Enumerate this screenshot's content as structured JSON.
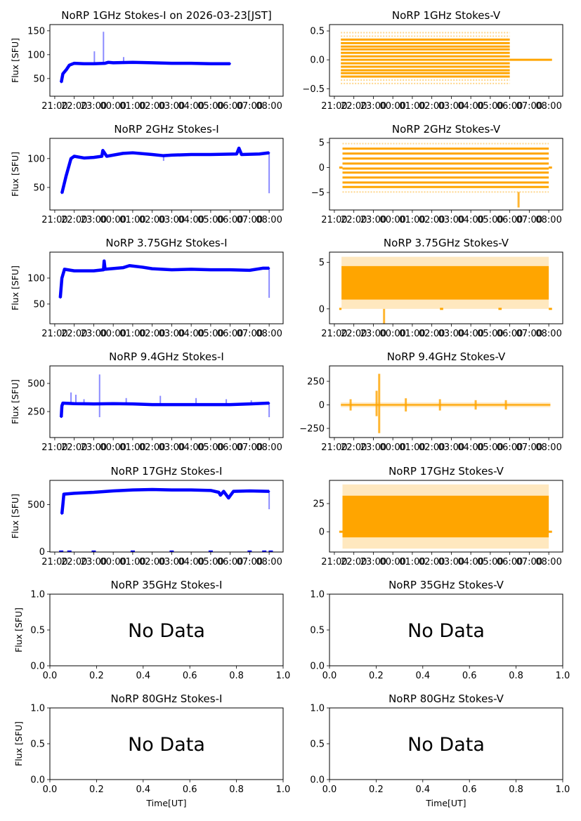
{
  "figure": {
    "background": "#ffffff",
    "colors": {
      "stokes_i": "#0000ff",
      "stokes_v": "#ffa500"
    }
  },
  "chart_data": [
    {
      "id": "i1",
      "type": "scatter",
      "title": "NoRP 1GHz Stokes-I on 2026-03-23[JST]",
      "ylabel": "Flux [SFU]",
      "xlabel": "",
      "col": 0,
      "row": 0,
      "xlim": [
        "20:45",
        "08:43"
      ],
      "ylim": [
        13,
        163
      ],
      "yticks": [
        50,
        100,
        150
      ],
      "xticks": [
        "21:00",
        "22:00",
        "23:00",
        "00:00",
        "01:00",
        "02:00",
        "03:00",
        "04:00",
        "05:00",
        "06:00",
        "07:00",
        "08:00"
      ],
      "points": [
        [
          "21:20",
          42
        ],
        [
          "21:25",
          60
        ],
        [
          "21:35",
          68
        ],
        [
          "21:45",
          78
        ],
        [
          "22:00",
          82
        ],
        [
          "22:30",
          81
        ],
        [
          "23:00",
          81
        ],
        [
          "23:35",
          82
        ],
        [
          "23:45",
          84
        ],
        [
          "00:00",
          83
        ],
        [
          "01:00",
          84
        ],
        [
          "02:00",
          83
        ],
        [
          "03:00",
          82
        ],
        [
          "04:00",
          82
        ],
        [
          "05:00",
          81
        ],
        [
          "06:00",
          81
        ]
      ],
      "spikes": [
        [
          "23:02",
          107
        ],
        [
          "23:30",
          148
        ],
        [
          "00:32",
          95
        ]
      ]
    },
    {
      "id": "v1",
      "type": "scatter",
      "title": "NoRP 1GHz Stokes-V",
      "ylabel": "",
      "xlabel": "",
      "col": 1,
      "row": 0,
      "xlim": [
        "20:45",
        "08:43"
      ],
      "ylim": [
        -0.63,
        0.61
      ],
      "yticks": [
        -0.5,
        0.0,
        0.5
      ],
      "ytick_labels": [
        "−0.5",
        "0.0",
        "0.5"
      ],
      "xticks": [
        "21:00",
        "22:00",
        "23:00",
        "00:00",
        "01:00",
        "02:00",
        "03:00",
        "04:00",
        "05:00",
        "06:00",
        "07:00",
        "08:00"
      ],
      "t_start": "21:20",
      "t_end": "06:00",
      "levels": [
        -0.29,
        -0.23,
        -0.18,
        -0.12,
        -0.06,
        0,
        0.06,
        0.12,
        0.18,
        0.23,
        0.29,
        0.35
      ],
      "sparse_levels": [
        -0.41,
        -0.35,
        0.41,
        0.47
      ],
      "zero_line": [
        [
          "06:00",
          "08:10"
        ]
      ]
    },
    {
      "id": "i2",
      "type": "scatter",
      "title": "NoRP 2GHz Stokes-I",
      "ylabel": "Flux [SFU]",
      "xlabel": "",
      "col": 0,
      "row": 1,
      "xlim": [
        "20:45",
        "08:43"
      ],
      "ylim": [
        11,
        135
      ],
      "yticks": [
        50,
        100
      ],
      "xticks": [
        "21:00",
        "22:00",
        "23:00",
        "00:00",
        "01:00",
        "02:00",
        "03:00",
        "04:00",
        "05:00",
        "06:00",
        "07:00",
        "08:00"
      ],
      "points": [
        [
          "21:22",
          40
        ],
        [
          "21:35",
          70
        ],
        [
          "21:50",
          100
        ],
        [
          "22:00",
          104
        ],
        [
          "22:30",
          101
        ],
        [
          "23:00",
          102
        ],
        [
          "23:25",
          104
        ],
        [
          "23:28",
          114
        ],
        [
          "23:40",
          104
        ],
        [
          "00:30",
          109
        ],
        [
          "01:00",
          110
        ],
        [
          "02:00",
          107
        ],
        [
          "02:35",
          105
        ],
        [
          "03:00",
          106
        ],
        [
          "04:00",
          107
        ],
        [
          "05:00",
          107
        ],
        [
          "06:20",
          108
        ],
        [
          "06:27",
          118
        ],
        [
          "06:35",
          107
        ],
        [
          "07:30",
          108
        ],
        [
          "08:00",
          110
        ]
      ],
      "spikes": [
        [
          "02:35",
          96
        ],
        [
          "08:00",
          40
        ]
      ]
    },
    {
      "id": "v2",
      "type": "scatter",
      "title": "NoRP 2GHz Stokes-V",
      "ylabel": "",
      "xlabel": "",
      "col": 1,
      "row": 1,
      "xlim": [
        "20:45",
        "08:43"
      ],
      "ylim": [
        -8.5,
        5.85
      ],
      "yticks": [
        -5,
        0,
        5
      ],
      "ytick_labels": [
        "−5",
        "0",
        "5"
      ],
      "xticks": [
        "21:00",
        "22:00",
        "23:00",
        "00:00",
        "01:00",
        "02:00",
        "03:00",
        "04:00",
        "05:00",
        "06:00",
        "07:00",
        "08:00"
      ],
      "t_start": "21:25",
      "t_end": "08:00",
      "levels": [
        -3.9,
        -3.0,
        -2.0,
        -1.0,
        -0.2,
        0.8,
        1.8,
        2.8,
        3.8
      ],
      "sparse_levels": [
        -4.9,
        4.8
      ],
      "zero_line": [
        [
          "21:15",
          "21:25"
        ],
        [
          "08:00",
          "08:10"
        ]
      ],
      "spikes": [
        [
          "06:27",
          -8,
          -4.9
        ]
      ]
    },
    {
      "id": "i3",
      "type": "scatter",
      "title": "NoRP 3.75GHz Stokes-I",
      "ylabel": "Flux [SFU]",
      "xlabel": "",
      "col": 0,
      "row": 2,
      "xlim": [
        "20:45",
        "08:43"
      ],
      "ylim": [
        12,
        150
      ],
      "yticks": [
        50,
        100
      ],
      "xticks": [
        "21:00",
        "22:00",
        "23:00",
        "00:00",
        "01:00",
        "02:00",
        "03:00",
        "04:00",
        "05:00",
        "06:00",
        "07:00",
        "08:00"
      ],
      "points": [
        [
          "21:17",
          62
        ],
        [
          "21:22",
          100
        ],
        [
          "21:30",
          117
        ],
        [
          "22:00",
          114
        ],
        [
          "23:00",
          114
        ],
        [
          "23:30",
          116
        ],
        [
          "23:32",
          133
        ],
        [
          "23:35",
          117
        ],
        [
          "00:30",
          120
        ],
        [
          "00:50",
          124
        ],
        [
          "01:30",
          121
        ],
        [
          "02:00",
          118
        ],
        [
          "03:00",
          116
        ],
        [
          "04:00",
          117
        ],
        [
          "05:00",
          116
        ],
        [
          "06:00",
          116
        ],
        [
          "07:00",
          115
        ],
        [
          "07:40",
          119
        ],
        [
          "08:00",
          119
        ]
      ],
      "spikes": [
        [
          "08:00",
          62
        ]
      ]
    },
    {
      "id": "v3",
      "type": "scatter",
      "title": "NoRP 3.75GHz Stokes-V",
      "ylabel": "",
      "xlabel": "",
      "col": 1,
      "row": 2,
      "xlim": [
        "20:45",
        "08:43"
      ],
      "ylim": [
        -1.6,
        6.1
      ],
      "yticks": [
        0,
        5
      ],
      "ytick_labels": [
        "0",
        "5"
      ],
      "xticks": [
        "21:00",
        "22:00",
        "23:00",
        "00:00",
        "01:00",
        "02:00",
        "03:00",
        "04:00",
        "05:00",
        "06:00",
        "07:00",
        "08:00"
      ],
      "t_start": "21:22",
      "t_end": "08:00",
      "dense": [
        1.0,
        4.6
      ],
      "sparse": [
        0.0,
        5.6
      ],
      "zero_line": [
        [
          "21:15",
          "21:22"
        ],
        [
          "02:25",
          "02:35"
        ],
        [
          "05:25",
          "05:35"
        ],
        [
          "08:00",
          "08:10"
        ]
      ],
      "spikes": [
        [
          "23:33",
          -1.6,
          0
        ]
      ]
    },
    {
      "id": "i4",
      "type": "scatter",
      "title": "NoRP 9.4GHz Stokes-I",
      "ylabel": "Flux [SFU]",
      "xlabel": "",
      "col": 0,
      "row": 3,
      "xlim": [
        "20:45",
        "08:43"
      ],
      "ylim": [
        19,
        656
      ],
      "yticks": [
        250,
        500
      ],
      "xticks": [
        "21:00",
        "22:00",
        "23:00",
        "00:00",
        "01:00",
        "02:00",
        "03:00",
        "04:00",
        "05:00",
        "06:00",
        "07:00",
        "08:00"
      ],
      "points": [
        [
          "21:20",
          200
        ],
        [
          "21:22",
          300
        ],
        [
          "21:25",
          325
        ],
        [
          "22:00",
          320
        ],
        [
          "23:00",
          318
        ],
        [
          "00:00",
          320
        ],
        [
          "01:00",
          318
        ],
        [
          "02:00",
          312
        ],
        [
          "03:00",
          312
        ],
        [
          "04:00",
          312
        ],
        [
          "05:00",
          312
        ],
        [
          "06:00",
          312
        ],
        [
          "07:00",
          318
        ],
        [
          "08:00",
          325
        ]
      ],
      "spikes": [
        [
          "23:18",
          580
        ],
        [
          "23:18",
          200
        ],
        [
          "21:50",
          420
        ],
        [
          "22:05",
          400
        ],
        [
          "22:30",
          360
        ],
        [
          "00:40",
          370
        ],
        [
          "02:25",
          390
        ],
        [
          "04:15",
          370
        ],
        [
          "05:48",
          360
        ],
        [
          "07:05",
          350
        ],
        [
          "08:00",
          200
        ]
      ]
    },
    {
      "id": "v4",
      "type": "scatter",
      "title": "NoRP 9.4GHz Stokes-V",
      "ylabel": "",
      "xlabel": "",
      "col": 1,
      "row": 3,
      "xlim": [
        "20:45",
        "08:43"
      ],
      "ylim": [
        -347,
        414
      ],
      "yticks": [
        -250,
        0,
        250
      ],
      "ytick_labels": [
        "−250",
        "0",
        "250"
      ],
      "xticks": [
        "21:00",
        "22:00",
        "23:00",
        "00:00",
        "01:00",
        "02:00",
        "03:00",
        "04:00",
        "05:00",
        "06:00",
        "07:00",
        "08:00"
      ],
      "t_start": "21:20",
      "t_end": "08:05",
      "dense": [
        -8,
        8
      ],
      "sparse": [
        -25,
        25
      ],
      "spikes": [
        [
          "23:18",
          -300,
          330
        ],
        [
          "23:10",
          -120,
          150
        ],
        [
          "21:50",
          -60,
          60
        ],
        [
          "00:40",
          -70,
          70
        ],
        [
          "02:25",
          -60,
          60
        ],
        [
          "04:15",
          -50,
          50
        ],
        [
          "05:48",
          -50,
          50
        ]
      ]
    },
    {
      "id": "i5",
      "type": "scatter",
      "title": "NoRP 17GHz Stokes-I",
      "ylabel": "Flux [SFU]",
      "xlabel": "",
      "col": 0,
      "row": 4,
      "xlim": [
        "20:45",
        "08:43"
      ],
      "ylim": [
        -5,
        757
      ],
      "yticks": [
        0,
        500
      ],
      "xticks": [
        "21:00",
        "22:00",
        "23:00",
        "00:00",
        "01:00",
        "02:00",
        "03:00",
        "04:00",
        "05:00",
        "06:00",
        "07:00",
        "08:00"
      ],
      "points": [
        [
          "21:22",
          400
        ],
        [
          "21:25",
          500
        ],
        [
          "21:28",
          610
        ],
        [
          "22:00",
          620
        ],
        [
          "23:00",
          630
        ],
        [
          "00:00",
          645
        ],
        [
          "01:00",
          655
        ],
        [
          "02:00",
          660
        ],
        [
          "03:00",
          655
        ],
        [
          "04:00",
          655
        ],
        [
          "05:00",
          650
        ],
        [
          "05:25",
          630
        ],
        [
          "05:30",
          600
        ],
        [
          "05:40",
          640
        ],
        [
          "05:55",
          570
        ],
        [
          "06:10",
          640
        ],
        [
          "07:00",
          645
        ],
        [
          "08:00",
          640
        ]
      ],
      "spikes": [
        [
          "08:00",
          450
        ]
      ],
      "zero_markers": [
        "21:20",
        "21:45",
        "23:00",
        "01:00",
        "03:00",
        "05:00",
        "07:00",
        "07:45",
        "08:05"
      ]
    },
    {
      "id": "v5",
      "type": "scatter",
      "title": "NoRP 17GHz Stokes-V",
      "ylabel": "",
      "xlabel": "",
      "col": 1,
      "row": 4,
      "xlim": [
        "20:45",
        "08:43"
      ],
      "ylim": [
        -18,
        45.6
      ],
      "yticks": [
        0,
        25
      ],
      "ytick_labels": [
        "0",
        "25"
      ],
      "xticks": [
        "21:00",
        "22:00",
        "23:00",
        "00:00",
        "01:00",
        "02:00",
        "03:00",
        "04:00",
        "05:00",
        "06:00",
        "07:00",
        "08:00"
      ],
      "t_start": "21:25",
      "t_end": "08:00",
      "dense": [
        -5,
        32
      ],
      "sparse": [
        -15,
        42
      ],
      "zero_line": [
        [
          "21:15",
          "08:10"
        ]
      ]
    },
    {
      "id": "i6",
      "type": "scatter",
      "title": "NoRP 35GHz Stokes-I",
      "ylabel": "Flux [SFU]",
      "xlabel": "",
      "col": 0,
      "row": 5,
      "no_data": "No Data",
      "xlim": [
        0,
        1
      ],
      "ylim": [
        0,
        1
      ],
      "xticks": [
        "0.0",
        "0.2",
        "0.4",
        "0.6",
        "0.8",
        "1.0"
      ],
      "yticks": [
        0,
        0.5,
        1
      ],
      "ytick_labels": [
        "0.0",
        "0.5",
        "1.0"
      ]
    },
    {
      "id": "v6",
      "type": "scatter",
      "title": "NoRP 35GHz Stokes-V",
      "ylabel": "",
      "xlabel": "",
      "col": 1,
      "row": 5,
      "no_data": "No Data",
      "xlim": [
        0,
        1
      ],
      "ylim": [
        0,
        1
      ],
      "xticks": [
        "0.0",
        "0.2",
        "0.4",
        "0.6",
        "0.8",
        "1.0"
      ],
      "yticks": [
        0,
        0.5,
        1
      ],
      "ytick_labels": [
        "0.0",
        "0.5",
        "1.0"
      ]
    },
    {
      "id": "i7",
      "type": "scatter",
      "title": "NoRP 80GHz Stokes-I",
      "ylabel": "Flux [SFU]",
      "xlabel": "Time[UT]",
      "col": 0,
      "row": 6,
      "no_data": "No Data",
      "xlim": [
        0,
        1
      ],
      "ylim": [
        0,
        1
      ],
      "xticks": [
        "0.0",
        "0.2",
        "0.4",
        "0.6",
        "0.8",
        "1.0"
      ],
      "yticks": [
        0,
        0.5,
        1
      ],
      "ytick_labels": [
        "0.0",
        "0.5",
        "1.0"
      ]
    },
    {
      "id": "v7",
      "type": "scatter",
      "title": "NoRP 80GHz Stokes-V",
      "ylabel": "",
      "xlabel": "Time[UT]",
      "col": 1,
      "row": 6,
      "no_data": "No Data",
      "xlim": [
        0,
        1
      ],
      "ylim": [
        0,
        1
      ],
      "xticks": [
        "0.0",
        "0.2",
        "0.4",
        "0.6",
        "0.8",
        "1.0"
      ],
      "yticks": [
        0,
        0.5,
        1
      ],
      "ytick_labels": [
        "0.0",
        "0.5",
        "1.0"
      ]
    }
  ]
}
